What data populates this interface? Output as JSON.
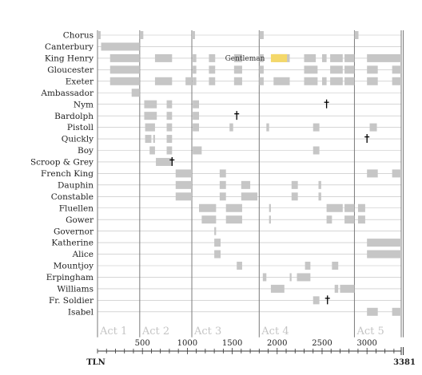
{
  "chart_data": {
    "type": "timeline",
    "x_unit_label": "TLN",
    "x_max_label": "3381",
    "x_range": [
      0,
      3381
    ],
    "x_ticks": [
      500,
      1000,
      1500,
      2000,
      2500,
      3000
    ],
    "grid": true,
    "acts": [
      {
        "label": "Act 1",
        "start": 0,
        "end": 470
      },
      {
        "label": "Act 2",
        "start": 470,
        "end": 1050
      },
      {
        "label": "Act 3",
        "start": 1050,
        "end": 1800
      },
      {
        "label": "Act 4",
        "start": 1800,
        "end": 2860
      },
      {
        "label": "Act 5",
        "start": 2860,
        "end": 3381
      }
    ],
    "characters": [
      {
        "name": "Chorus",
        "spans": [
          [
            0,
            35
          ],
          [
            470,
            510
          ],
          [
            1050,
            1085
          ],
          [
            1800,
            1850
          ],
          [
            2860,
            2905
          ]
        ]
      },
      {
        "name": "Canterbury",
        "spans": [
          [
            40,
            470
          ]
        ]
      },
      {
        "name": "King Henry",
        "spans": [
          [
            140,
            470
          ],
          [
            640,
            830
          ],
          [
            1060,
            1100
          ],
          [
            1240,
            1310
          ],
          [
            1520,
            1610
          ],
          [
            1800,
            1850
          ],
          [
            1960,
            2140
          ],
          [
            2300,
            2430
          ],
          [
            2500,
            2550
          ],
          [
            2590,
            2730
          ],
          [
            2750,
            2860
          ],
          [
            3000,
            3381
          ]
        ]
      },
      {
        "name": "Gloucester",
        "spans": [
          [
            140,
            470
          ],
          [
            1060,
            1100
          ],
          [
            1240,
            1310
          ],
          [
            1520,
            1610
          ],
          [
            1800,
            1850
          ],
          [
            2300,
            2450
          ],
          [
            2590,
            2730
          ],
          [
            2750,
            2860
          ],
          [
            3000,
            3120
          ],
          [
            3280,
            3381
          ]
        ]
      },
      {
        "name": "Exeter",
        "spans": [
          [
            140,
            470
          ],
          [
            640,
            830
          ],
          [
            980,
            1050
          ],
          [
            1060,
            1100
          ],
          [
            1240,
            1310
          ],
          [
            1520,
            1610
          ],
          [
            1800,
            1850
          ],
          [
            1960,
            2140
          ],
          [
            2300,
            2450
          ],
          [
            2500,
            2550
          ],
          [
            2590,
            2730
          ],
          [
            2750,
            2860
          ],
          [
            3000,
            3120
          ],
          [
            3280,
            3381
          ]
        ]
      },
      {
        "name": "Ambassador",
        "spans": [
          [
            380,
            470
          ]
        ]
      },
      {
        "name": "Nym",
        "spans": [
          [
            520,
            660
          ],
          [
            770,
            830
          ],
          [
            1060,
            1130
          ]
        ]
      },
      {
        "name": "Bardolph",
        "spans": [
          [
            520,
            660
          ],
          [
            770,
            830
          ],
          [
            1060,
            1130
          ]
        ]
      },
      {
        "name": "Pistoll",
        "spans": [
          [
            530,
            640
          ],
          [
            770,
            830
          ],
          [
            1060,
            1130
          ],
          [
            1470,
            1510
          ],
          [
            1880,
            1910
          ],
          [
            2400,
            2470
          ],
          [
            3030,
            3110
          ]
        ]
      },
      {
        "name": "Quickly",
        "spans": [
          [
            530,
            600
          ],
          [
            620,
            640
          ],
          [
            770,
            830
          ]
        ]
      },
      {
        "name": "Boy",
        "spans": [
          [
            580,
            640
          ],
          [
            770,
            830
          ],
          [
            1060,
            1160
          ],
          [
            2400,
            2470
          ]
        ]
      },
      {
        "name": "Scroop & Grey",
        "spans": [
          [
            650,
            830
          ]
        ]
      },
      {
        "name": "French King",
        "spans": [
          [
            870,
            1050
          ],
          [
            1360,
            1430
          ],
          [
            3000,
            3120
          ],
          [
            3280,
            3381
          ]
        ]
      },
      {
        "name": "Dauphin",
        "spans": [
          [
            870,
            1050
          ],
          [
            1360,
            1430
          ],
          [
            1600,
            1700
          ],
          [
            2160,
            2230
          ],
          [
            2460,
            2490
          ]
        ]
      },
      {
        "name": "Constable",
        "spans": [
          [
            870,
            1050
          ],
          [
            1360,
            1430
          ],
          [
            1600,
            1780
          ],
          [
            2160,
            2230
          ],
          [
            2460,
            2490
          ]
        ]
      },
      {
        "name": "Fluellen",
        "spans": [
          [
            1130,
            1320
          ],
          [
            1430,
            1610
          ],
          [
            1910,
            1930
          ],
          [
            2550,
            2730
          ],
          [
            2750,
            2860
          ],
          [
            2900,
            2980
          ]
        ]
      },
      {
        "name": "Gower",
        "spans": [
          [
            1160,
            1320
          ],
          [
            1430,
            1610
          ],
          [
            1910,
            1930
          ],
          [
            2550,
            2610
          ],
          [
            2750,
            2860
          ],
          [
            2900,
            2980
          ]
        ]
      },
      {
        "name": "Governor",
        "spans": [
          [
            1300,
            1320
          ]
        ]
      },
      {
        "name": "Katherine",
        "spans": [
          [
            1300,
            1370
          ],
          [
            3000,
            3381
          ]
        ]
      },
      {
        "name": "Alice",
        "spans": [
          [
            1300,
            1370
          ],
          [
            3000,
            3381
          ]
        ]
      },
      {
        "name": "Mountjoy",
        "spans": [
          [
            1550,
            1610
          ],
          [
            2310,
            2370
          ],
          [
            2610,
            2680
          ]
        ]
      },
      {
        "name": "Erpingham",
        "spans": [
          [
            1840,
            1880
          ],
          [
            2140,
            2160
          ],
          [
            2220,
            2370
          ]
        ]
      },
      {
        "name": "Williams",
        "spans": [
          [
            1930,
            2080
          ],
          [
            2640,
            2680
          ],
          [
            2700,
            2860
          ]
        ]
      },
      {
        "name": "Fr. Soldier",
        "spans": [
          [
            2400,
            2470
          ]
        ]
      },
      {
        "name": "Isabel",
        "spans": [
          [
            3000,
            3120
          ],
          [
            3280,
            3381
          ]
        ]
      }
    ],
    "deaths": [
      {
        "character": "Nym",
        "at": 2550
      },
      {
        "character": "Bardolph",
        "at": 1550
      },
      {
        "character": "Quickly",
        "at": 3000
      },
      {
        "character": "Scroop & Grey",
        "at": 830
      },
      {
        "character": "Fr. Soldier",
        "at": 2560
      }
    ],
    "annotations": [
      {
        "text": "Gentleman",
        "row": "King Henry",
        "at": 1420,
        "highlight": [
          1930,
          2110
        ]
      }
    ],
    "colors": {
      "bar": "#c6c6c6",
      "highlight": "#f4d86a",
      "act_line": "#7a7a7a",
      "grid": "#bdbdbd"
    }
  }
}
